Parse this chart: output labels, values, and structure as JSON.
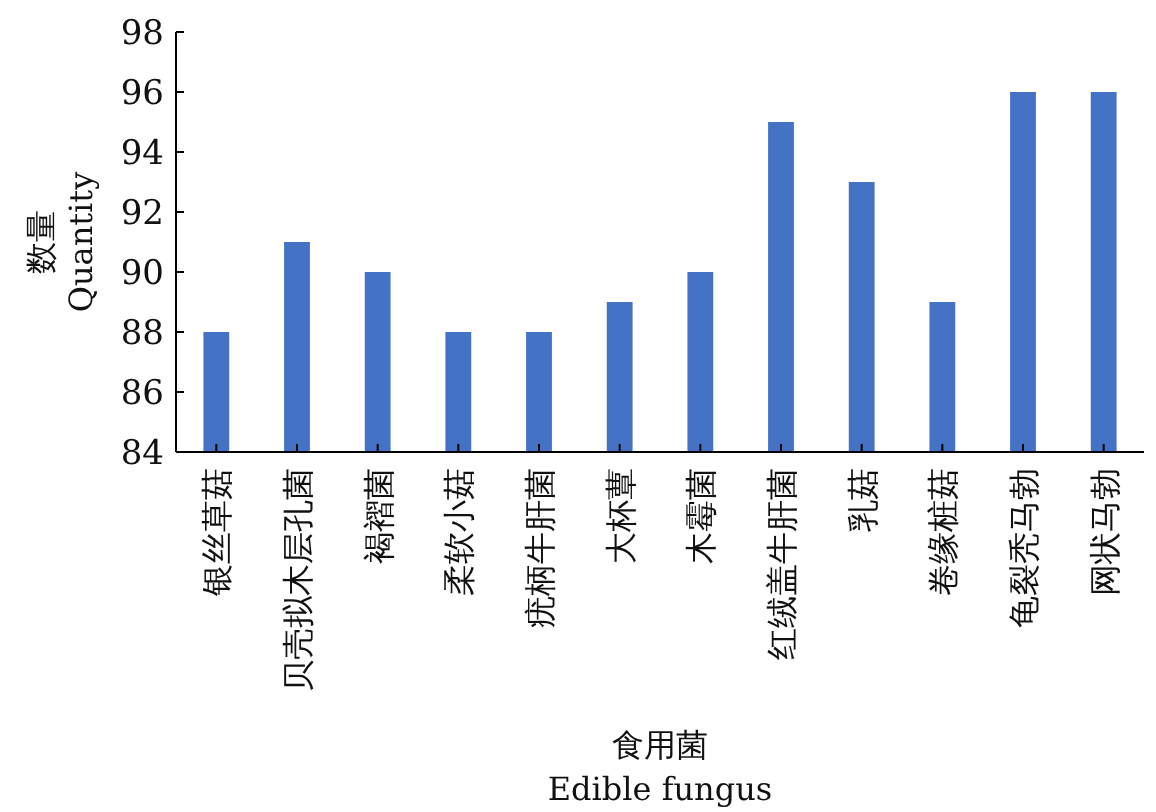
{
  "chart_data": {
    "type": "bar",
    "categories": [
      "银丝草菇",
      "贝壳拟木层孔菌",
      "褐褶菌",
      "柔软小菇",
      "疣柄牛肝菌",
      "大杯蕈",
      "木霉菌",
      "红绒盖牛肝菌",
      "乳菇",
      "卷缘桩菇",
      "龟裂秃马勃",
      "网状马勃"
    ],
    "values": [
      88,
      91,
      90,
      88,
      88,
      89,
      90,
      95,
      93,
      89,
      96,
      96
    ],
    "color": "#4472c4",
    "ylim": [
      84,
      98
    ],
    "yticks": [
      84,
      86,
      88,
      90,
      92,
      94,
      96,
      98
    ],
    "xlabel": "食用菌\nEdible fungus",
    "ylabel": "数量\nQuantity",
    "grid": false
  }
}
